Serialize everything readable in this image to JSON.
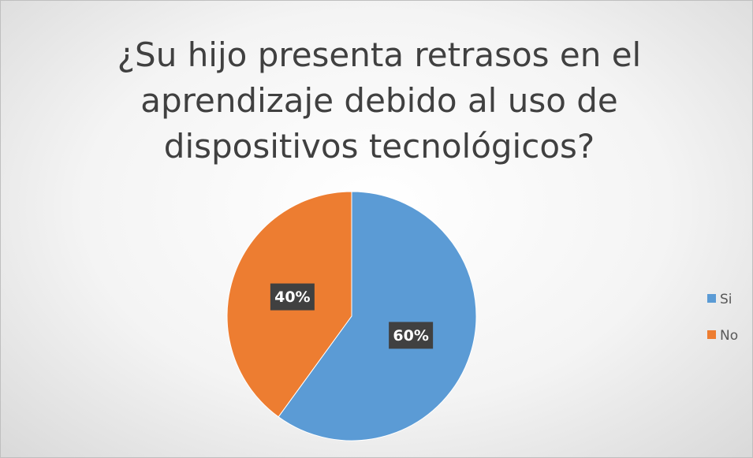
{
  "chart_data": {
    "type": "pie",
    "title": "¿Su hijo presenta retrasos en el aprendizaje debido al uso de dispositivos tecnológicos?",
    "categories": [
      "Si",
      "No"
    ],
    "values": [
      60,
      40
    ],
    "value_labels": [
      "60%",
      "40%"
    ],
    "colors": [
      "#5b9bd5",
      "#ed7d31"
    ],
    "legend": "right"
  }
}
